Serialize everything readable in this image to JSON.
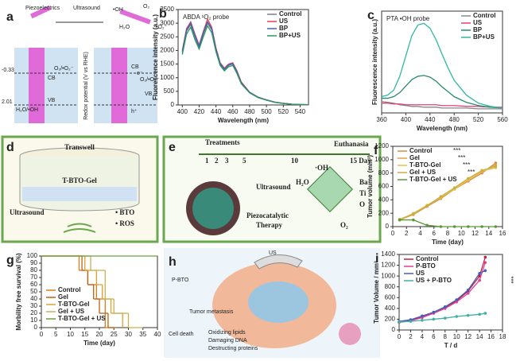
{
  "chart_data": [
    {
      "type": "line",
      "label": "b",
      "title": "ABDA ¹O₂ probe",
      "xlabel": "Wavelength (nm)",
      "ylabel": "Fluorescence intensity (a.u.)",
      "x": [
        400,
        405,
        410,
        415,
        420,
        425,
        430,
        435,
        440,
        445,
        450,
        455,
        460,
        465,
        470,
        480,
        490,
        500,
        510,
        520,
        530,
        540,
        550
      ],
      "series": [
        {
          "name": "Control",
          "color": "#808080",
          "values": [
            1900,
            2700,
            2950,
            2500,
            2100,
            2600,
            3000,
            2750,
            2000,
            1500,
            1300,
            1450,
            1500,
            1200,
            800,
            450,
            280,
            180,
            100,
            60,
            30,
            15,
            10
          ]
        },
        {
          "name": "US",
          "color": "#e8404a",
          "values": [
            2000,
            2800,
            3050,
            2600,
            2200,
            2700,
            3150,
            2850,
            2100,
            1550,
            1350,
            1500,
            1550,
            1250,
            850,
            470,
            290,
            190,
            105,
            60,
            30,
            15,
            10
          ]
        },
        {
          "name": "BP",
          "color": "#4060c0",
          "values": [
            1950,
            2750,
            3000,
            2550,
            2150,
            2650,
            3050,
            2800,
            2050,
            1520,
            1320,
            1470,
            1520,
            1220,
            820,
            460,
            285,
            185,
            100,
            60,
            30,
            15,
            10
          ]
        },
        {
          "name": "BP+US",
          "color": "#2a9a5a",
          "values": [
            1850,
            2600,
            2850,
            2400,
            2050,
            2500,
            2900,
            2650,
            1950,
            1450,
            1250,
            1400,
            1450,
            1150,
            780,
            440,
            270,
            175,
            95,
            55,
            28,
            14,
            10
          ]
        }
      ],
      "xlim": [
        395,
        550
      ],
      "xticks": [
        400,
        420,
        440,
        460,
        480,
        500,
        520,
        540
      ],
      "ylim": [
        0,
        3500
      ],
      "yticks": [
        0,
        500,
        1000,
        1500,
        2000,
        2500,
        3000,
        3500
      ],
      "legend": "upper right"
    },
    {
      "type": "line",
      "label": "c",
      "title": "PTA •OH probe",
      "xlabel": "Wavelength (nm)",
      "ylabel": "Fluorescence intensity (a.u.)",
      "x": [
        360,
        370,
        380,
        390,
        400,
        410,
        420,
        430,
        440,
        450,
        460,
        470,
        480,
        500,
        520,
        540,
        560
      ],
      "series": [
        {
          "name": "Control",
          "color": "#888888",
          "values": [
            14,
            13,
            12,
            10,
            9,
            8,
            8,
            7,
            7,
            7,
            6,
            6,
            6,
            6,
            5,
            5,
            5
          ]
        },
        {
          "name": "US",
          "color": "#e0407a",
          "values": [
            12,
            12,
            11,
            11,
            10,
            10,
            10,
            10,
            10,
            10,
            9,
            9,
            9,
            8,
            8,
            7,
            7
          ]
        },
        {
          "name": "BP",
          "color": "#2a8a6a",
          "values": [
            18,
            18,
            20,
            25,
            33,
            41,
            45,
            46,
            44,
            39,
            32,
            26,
            20,
            13,
            9,
            7,
            6
          ]
        },
        {
          "name": "BP+US",
          "color": "#2fb8a0",
          "values": [
            20,
            22,
            28,
            45,
            70,
            95,
            108,
            110,
            104,
            90,
            72,
            55,
            40,
            22,
            12,
            8,
            6
          ]
        }
      ],
      "xlim": [
        360,
        560
      ],
      "xticks": [
        360,
        400,
        440,
        480,
        520,
        560
      ],
      "ylim": [
        0,
        125
      ],
      "legend": "upper right"
    },
    {
      "type": "line",
      "label": "f",
      "xlabel": "Time (day)",
      "ylabel": "Tumor volume (mm³)",
      "markers": true,
      "x": [
        1,
        3,
        5,
        7,
        9,
        11,
        13,
        15
      ],
      "series": [
        {
          "name": "Control",
          "color": "#d4903a",
          "values": [
            100,
            180,
            300,
            420,
            560,
            680,
            800,
            950
          ]
        },
        {
          "name": "Gel",
          "color": "#e0a050",
          "values": [
            110,
            190,
            310,
            430,
            570,
            700,
            820,
            920
          ]
        },
        {
          "name": "T-BTO-Gel",
          "color": "#e8c050",
          "values": [
            105,
            200,
            320,
            440,
            560,
            700,
            830,
            880
          ]
        },
        {
          "name": "Gel + US",
          "color": "#c8b040",
          "values": [
            100,
            190,
            310,
            450,
            580,
            720,
            840,
            900
          ]
        },
        {
          "name": "T-BTO-Gel + US",
          "color": "#5a9a3a",
          "values": [
            100,
            100,
            20,
            0,
            0,
            0,
            0,
            0
          ]
        }
      ],
      "annotations": [
        "***",
        "***",
        "***",
        "***"
      ],
      "xlim": [
        0,
        16
      ],
      "xticks": [
        0,
        2,
        4,
        6,
        8,
        10,
        12,
        14,
        16
      ],
      "ylim": [
        0,
        1200
      ],
      "yticks": [
        0,
        200,
        400,
        600,
        800,
        1000,
        1200
      ],
      "legend": "upper left"
    },
    {
      "type": "step",
      "label": "g",
      "xlabel": "Time (day)",
      "ylabel": "Morbility free survival (%)",
      "series": [
        {
          "name": "Control",
          "color": "#d08020",
          "x": [
            0,
            13,
            16,
            19,
            22,
            25
          ],
          "values": [
            100,
            80,
            60,
            40,
            0,
            0
          ]
        },
        {
          "name": "Gel",
          "color": "#c06010",
          "x": [
            0,
            14,
            16,
            18,
            20,
            23,
            26
          ],
          "values": [
            100,
            80,
            60,
            40,
            20,
            0,
            0
          ]
        },
        {
          "name": "T-BTO-Gel",
          "color": "#e0a030",
          "x": [
            0,
            15,
            19,
            21,
            24,
            28
          ],
          "values": [
            100,
            80,
            60,
            40,
            20,
            0
          ]
        },
        {
          "name": "Gel + US",
          "color": "#c8b050",
          "x": [
            0,
            17,
            22,
            25,
            30,
            35
          ],
          "values": [
            100,
            80,
            40,
            20,
            0,
            0
          ]
        },
        {
          "name": "T-BTO-Gel + US",
          "color": "#6aa040",
          "x": [
            0,
            40
          ],
          "values": [
            100,
            100
          ]
        }
      ],
      "xlim": [
        0,
        40
      ],
      "xticks": [
        0,
        5,
        10,
        15,
        20,
        25,
        30,
        35,
        40
      ],
      "ylim": [
        0,
        100
      ],
      "yticks": [
        0,
        10,
        20,
        30,
        40,
        50,
        60,
        70,
        80,
        90,
        100
      ],
      "legend": "lower left"
    },
    {
      "type": "line",
      "label": "i",
      "xlabel": "T / d",
      "ylabel": "Tumor Volume / mm³",
      "markers": true,
      "x": [
        0,
        2,
        4,
        6,
        8,
        10,
        12,
        14,
        15
      ],
      "series": [
        {
          "name": "Control",
          "color": "#c02040",
          "values": [
            150,
            180,
            240,
            320,
            420,
            540,
            720,
            1000,
            1350
          ]
        },
        {
          "name": "P-BTO",
          "color": "#e04090",
          "values": [
            140,
            170,
            230,
            310,
            400,
            520,
            680,
            920,
            1250
          ]
        },
        {
          "name": "US",
          "color": "#4060c0",
          "values": [
            160,
            190,
            260,
            330,
            430,
            560,
            740,
            1050,
            1100
          ]
        },
        {
          "name": "US + P-BTO",
          "color": "#40b0a0",
          "values": [
            150,
            160,
            180,
            200,
            220,
            250,
            270,
            290,
            310
          ]
        }
      ],
      "annotations": [
        "***"
      ],
      "xlim": [
        0,
        18
      ],
      "xticks": [
        0,
        2,
        4,
        6,
        8,
        10,
        12,
        14,
        16,
        18
      ],
      "ylim": [
        0,
        1400
      ],
      "yticks": [
        0,
        200,
        400,
        600,
        800,
        1000,
        1200,
        1400
      ],
      "legend": "upper left"
    }
  ],
  "diagrams": {
    "a": {
      "label": "a",
      "texts": [
        "Piezoelectrics",
        "Ultrasound",
        "•OH",
        "O₂",
        "H₂O",
        "•O₂⁻",
        "-0.33",
        "2.01",
        "CB",
        "VB",
        "O₂/•O₂⁻",
        "H₂O/•OH",
        "Redox potential (V vs RHE)",
        "CB",
        "VB",
        "O₂/•O₂⁻",
        "e⁻",
        "h⁺"
      ]
    },
    "d": {
      "label": "d",
      "texts": [
        "Transwell",
        "T-BTO-Gel",
        "Ultrasound",
        "• BTO",
        "• ROS"
      ]
    },
    "e": {
      "label": "e",
      "texts": [
        "Treatments",
        "Euthanasia",
        "1",
        "2",
        "3",
        "5",
        "10",
        "15 Day",
        "Ultrasound",
        "Piezocatalytic",
        "Therapy",
        "·OH",
        "H₂O",
        "O₂",
        "Ba",
        "Ti",
        "O"
      ]
    },
    "h": {
      "label": "h",
      "texts": [
        "P-BTO",
        "US",
        "Tumor metastasis",
        "Cell death",
        "Oxidizing lipids",
        "Damaging DNA",
        "Destructing proteins"
      ]
    }
  }
}
